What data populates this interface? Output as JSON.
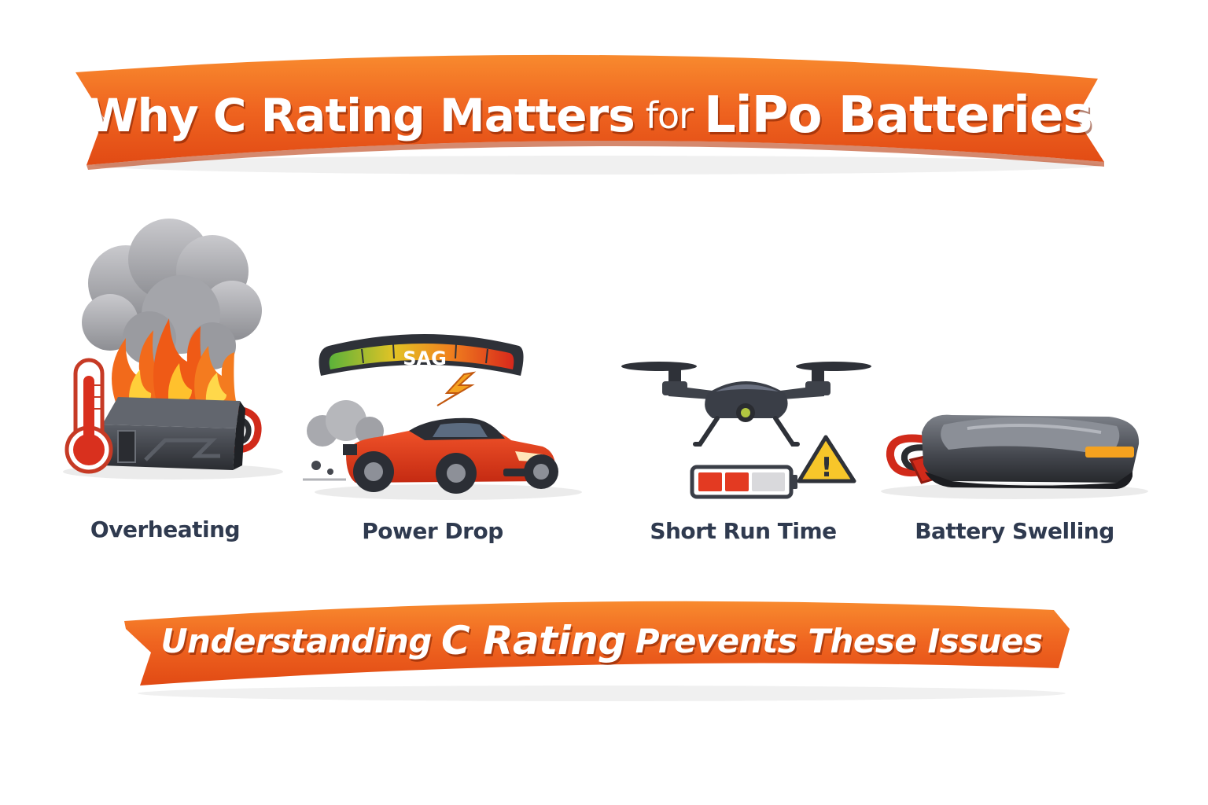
{
  "title": {
    "part1": "Why C Rating Matters",
    "part2": "for",
    "part3": "LiPo Batteries"
  },
  "subtitle": {
    "part1": "Understanding",
    "part2": "C Rating",
    "part3": "Prevents These Issues"
  },
  "issues": [
    {
      "label": "Overheating",
      "icon": "overheating-battery-icon"
    },
    {
      "label": "Power Drop",
      "icon": "rc-car-voltage-sag-icon"
    },
    {
      "label": "Short Run Time",
      "icon": "drone-low-battery-icon"
    },
    {
      "label": "Battery Swelling",
      "icon": "swollen-battery-icon"
    }
  ],
  "gauge_label": "SAG",
  "warning_symbol": "!",
  "colors": {
    "banner": "#ee5a1c",
    "banner_light": "#f7862e",
    "label_text": "#2f3a4f",
    "flame": "#f26a1b",
    "car": "#e5391b",
    "battery_dark": "#3a3d44"
  }
}
